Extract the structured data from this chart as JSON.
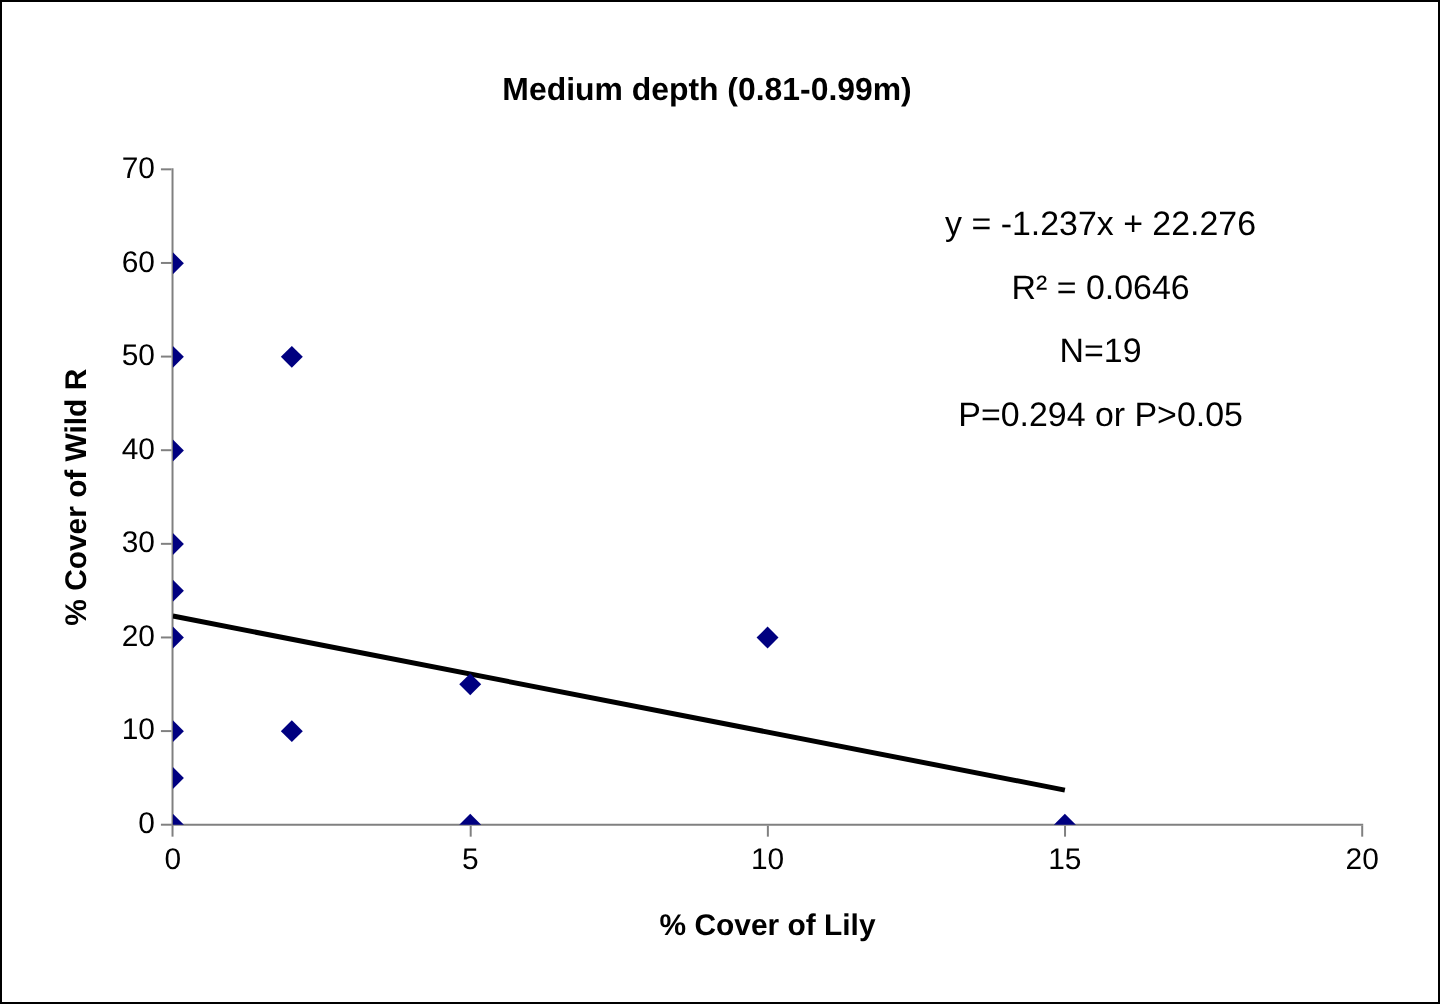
{
  "chart_data": {
    "type": "scatter",
    "title": "Medium depth (0.81-0.99m)",
    "xlabel": "% Cover of Lily",
    "ylabel": "% Cover of Wild R",
    "series": [
      {
        "color": "#000080",
        "marker": "diamond",
        "x": [
          0,
          0,
          0,
          0,
          0,
          0,
          0,
          0,
          0,
          2,
          2,
          5,
          5,
          10,
          15
        ],
        "values": [
          60,
          50,
          40,
          30,
          25,
          20,
          10,
          5,
          0,
          50,
          10,
          15,
          0,
          20,
          0
        ]
      },
      {
        "type": "line",
        "color": "#000000",
        "marker": "none",
        "line_style": "solid",
        "x": [
          0,
          15
        ],
        "values": [
          22.3,
          3.7
        ]
      }
    ],
    "xlim": [
      0,
      20
    ],
    "xticks": [
      0,
      5,
      10,
      15,
      20
    ],
    "ylim": [
      0,
      70
    ],
    "yticks": [
      0,
      10,
      20,
      30,
      40,
      50,
      60,
      70
    ],
    "grid": false,
    "legend": false,
    "annotations": [
      "y = -1.237x + 22.276",
      "R² = 0.0646",
      "N=19",
      "P=0.294 or P>0.05"
    ]
  }
}
